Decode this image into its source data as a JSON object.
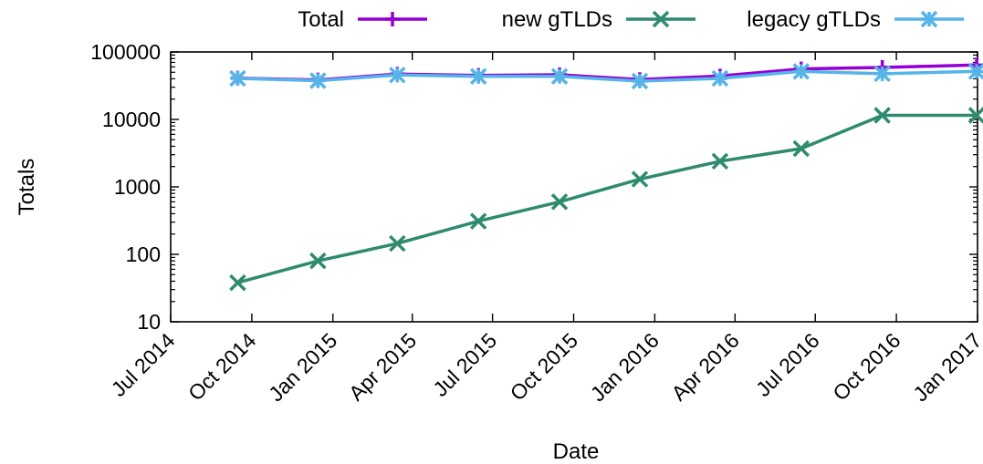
{
  "chart_data": {
    "type": "line",
    "title": "",
    "xlabel": "Date",
    "ylabel": "Totals",
    "y_scale": "log",
    "ylim": [
      10,
      100000
    ],
    "xlim": [
      "2014-07-01",
      "2017-01-01"
    ],
    "grid": false,
    "legend_position": "top",
    "x_ticks": [
      {
        "date": "2014-07-01",
        "label": "Jul 2014"
      },
      {
        "date": "2014-10-01",
        "label": "Oct 2014"
      },
      {
        "date": "2015-01-01",
        "label": "Jan 2015"
      },
      {
        "date": "2015-04-01",
        "label": "Apr 2015"
      },
      {
        "date": "2015-07-01",
        "label": "Jul 2015"
      },
      {
        "date": "2015-10-01",
        "label": "Oct 2015"
      },
      {
        "date": "2016-01-01",
        "label": "Jan 2016"
      },
      {
        "date": "2016-04-01",
        "label": "Apr 2016"
      },
      {
        "date": "2016-07-01",
        "label": "Jul 2016"
      },
      {
        "date": "2016-10-01",
        "label": "Oct 2016"
      },
      {
        "date": "2017-01-01",
        "label": "Jan 2017"
      }
    ],
    "y_ticks": [
      {
        "value": 10,
        "label": "10"
      },
      {
        "value": 100,
        "label": "100"
      },
      {
        "value": 1000,
        "label": "1000"
      },
      {
        "value": 10000,
        "label": "10000"
      },
      {
        "value": 100000,
        "label": "100000"
      }
    ],
    "x": [
      "2014-09-15",
      "2014-12-15",
      "2015-03-15",
      "2015-06-15",
      "2015-09-15",
      "2015-12-15",
      "2016-03-15",
      "2016-06-15",
      "2016-09-15",
      "2016-12-31"
    ],
    "series": [
      {
        "name": "Total",
        "color": "#9400d3",
        "marker": "plus",
        "values": [
          41000,
          38500,
          47000,
          45000,
          46000,
          39000,
          44000,
          56000,
          59000,
          64000
        ]
      },
      {
        "name": "new gTLDs",
        "color": "#2e8b6e",
        "marker": "x",
        "values": [
          38,
          80,
          145,
          310,
          600,
          1300,
          2400,
          3700,
          11500,
          11500
        ]
      },
      {
        "name": "legacy gTLDs",
        "color": "#56b4e9",
        "marker": "star",
        "values": [
          40500,
          37500,
          45500,
          43500,
          43500,
          37000,
          40500,
          51500,
          47500,
          51500
        ]
      }
    ]
  }
}
